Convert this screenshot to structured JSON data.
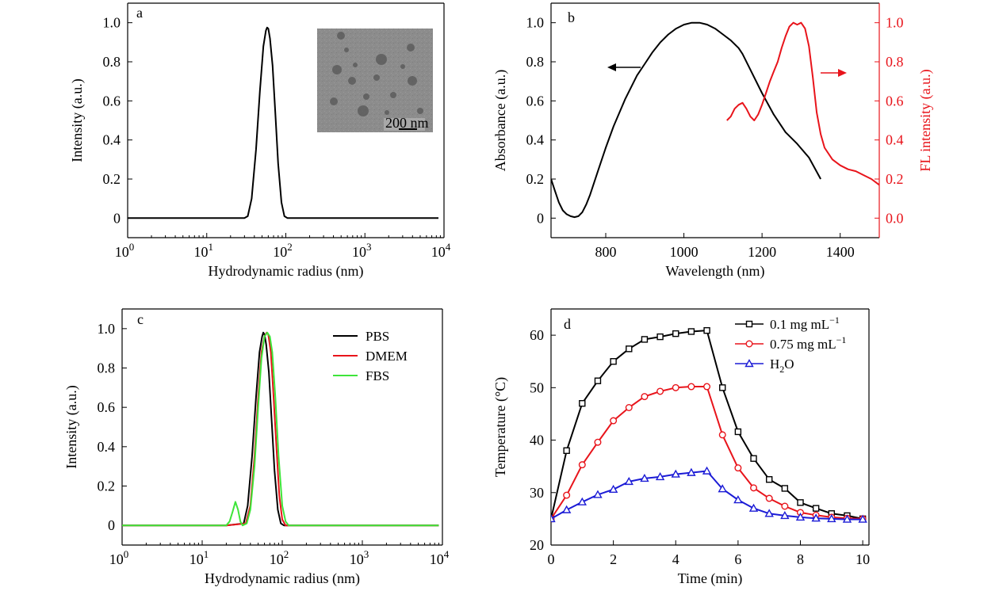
{
  "chart_data": [
    {
      "panel": "a",
      "type": "line",
      "xscale": "log",
      "xlabel": "Hydrodynamic radius (nm)",
      "ylabel": "Intensity (a.u.)",
      "xlim": [
        1,
        10000
      ],
      "ylim": [
        -0.1,
        1.1
      ],
      "xticklabels": [
        {
          "base": "10",
          "exp": "0"
        },
        {
          "base": "10",
          "exp": "1"
        },
        {
          "base": "10",
          "exp": "2"
        },
        {
          "base": "10",
          "exp": "3"
        },
        {
          "base": "10",
          "exp": "4"
        }
      ],
      "yticks": [
        0,
        0.2,
        0.4,
        0.6,
        0.8,
        1.0
      ],
      "yticklabels": [
        "0",
        "0.2",
        "0.4",
        "0.6",
        "0.8",
        "1.0"
      ],
      "series": [
        {
          "color": "#000000",
          "x": [
            1,
            10,
            20,
            30,
            33,
            37,
            42,
            47,
            52,
            56,
            58,
            60,
            63,
            68,
            74,
            80,
            88,
            96,
            105,
            200,
            1000,
            8500
          ],
          "y": [
            0,
            0,
            0,
            0,
            0.01,
            0.1,
            0.35,
            0.65,
            0.88,
            0.96,
            0.975,
            0.97,
            0.92,
            0.78,
            0.52,
            0.28,
            0.08,
            0.01,
            0,
            0,
            0,
            0
          ]
        }
      ],
      "inset": {
        "type": "TEM image",
        "scale_bar": "200 nm"
      }
    },
    {
      "panel": "b",
      "type": "line",
      "xlabel": "Wavelength (nm)",
      "ylabel": "Absorbance (a.u.)",
      "y2label": "FL intensity (a.u.)",
      "xlim": [
        660,
        1500
      ],
      "ylim": [
        -0.1,
        1.1
      ],
      "y2lim": [
        -0.1,
        1.1
      ],
      "xticks": [
        800,
        1000,
        1200,
        1400
      ],
      "yticks": [
        0,
        0.2,
        0.4,
        0.6,
        0.8,
        1.0
      ],
      "yticklabels": [
        "0",
        "0.2",
        "0.4",
        "0.6",
        "0.8",
        "1.0"
      ],
      "y2ticklabels": [
        "0.0",
        "0.2",
        "0.4",
        "0.6",
        "0.8",
        "1.0"
      ],
      "series": [
        {
          "color": "#000000",
          "axis": "left",
          "x": [
            660,
            670,
            680,
            690,
            700,
            710,
            720,
            730,
            740,
            750,
            760,
            780,
            800,
            820,
            850,
            880,
            900,
            920,
            940,
            960,
            980,
            1000,
            1020,
            1040,
            1060,
            1080,
            1100,
            1120,
            1140,
            1150,
            1170,
            1200,
            1230,
            1260,
            1290,
            1320,
            1350
          ],
          "y": [
            0.2,
            0.14,
            0.08,
            0.04,
            0.02,
            0.01,
            0.005,
            0.01,
            0.03,
            0.07,
            0.12,
            0.24,
            0.36,
            0.47,
            0.61,
            0.73,
            0.79,
            0.85,
            0.9,
            0.94,
            0.97,
            0.99,
            1.0,
            1.0,
            0.99,
            0.97,
            0.94,
            0.91,
            0.87,
            0.84,
            0.76,
            0.64,
            0.53,
            0.44,
            0.38,
            0.31,
            0.2
          ]
        },
        {
          "color": "#e8141b",
          "axis": "right",
          "x": [
            1110,
            1120,
            1130,
            1140,
            1150,
            1160,
            1170,
            1180,
            1190,
            1200,
            1210,
            1220,
            1230,
            1240,
            1250,
            1260,
            1270,
            1280,
            1290,
            1300,
            1310,
            1320,
            1330,
            1340,
            1350,
            1360,
            1380,
            1400,
            1420,
            1440,
            1460,
            1480,
            1500
          ],
          "y": [
            0.5,
            0.52,
            0.56,
            0.58,
            0.59,
            0.56,
            0.52,
            0.5,
            0.53,
            0.58,
            0.64,
            0.7,
            0.75,
            0.8,
            0.87,
            0.93,
            0.98,
            1.0,
            0.99,
            1.0,
            0.97,
            0.88,
            0.72,
            0.54,
            0.43,
            0.36,
            0.3,
            0.27,
            0.25,
            0.24,
            0.22,
            0.2,
            0.17
          ]
        }
      ],
      "annotations": [
        {
          "kind": "arrow-left",
          "color": "#000000"
        },
        {
          "kind": "arrow-right",
          "color": "#e8141b"
        }
      ]
    },
    {
      "panel": "c",
      "type": "line",
      "xscale": "log",
      "xlabel": "Hydrodynamic radius (nm)",
      "ylabel": "Intensity (a.u.)",
      "xlim": [
        1,
        10000
      ],
      "ylim": [
        -0.1,
        1.1
      ],
      "xticklabels": [
        {
          "base": "10",
          "exp": "0"
        },
        {
          "base": "10",
          "exp": "1"
        },
        {
          "base": "10",
          "exp": "2"
        },
        {
          "base": "10",
          "exp": "3"
        },
        {
          "base": "10",
          "exp": "4"
        }
      ],
      "yticks": [
        0,
        0.2,
        0.4,
        0.6,
        0.8,
        1.0
      ],
      "yticklabels": [
        "0",
        "0.2",
        "0.4",
        "0.6",
        "0.8",
        "1.0"
      ],
      "series": [
        {
          "name": "PBS",
          "color": "#000000",
          "x": [
            1,
            20,
            33,
            37,
            42,
            47,
            52,
            56,
            58,
            60,
            63,
            68,
            74,
            80,
            88,
            96,
            105,
            9000
          ],
          "y": [
            0,
            0,
            0.01,
            0.1,
            0.35,
            0.65,
            0.88,
            0.96,
            0.98,
            0.97,
            0.92,
            0.78,
            0.52,
            0.28,
            0.08,
            0.01,
            0,
            0
          ]
        },
        {
          "name": "DMEM",
          "color": "#e8141b",
          "x": [
            1,
            20,
            35,
            40,
            45,
            50,
            55,
            60,
            64,
            67,
            72,
            78,
            85,
            92,
            100,
            110,
            9000
          ],
          "y": [
            0,
            0,
            0.01,
            0.1,
            0.35,
            0.65,
            0.88,
            0.96,
            0.98,
            0.97,
            0.88,
            0.65,
            0.38,
            0.15,
            0.03,
            0,
            0
          ]
        },
        {
          "name": "FBS",
          "color": "#3ee53a",
          "x": [
            1,
            20,
            22,
            24,
            26,
            28,
            30,
            32,
            36,
            40,
            45,
            50,
            55,
            60,
            65,
            70,
            75,
            82,
            90,
            100,
            110,
            120,
            9000
          ],
          "y": [
            0,
            0,
            0.02,
            0.07,
            0.12,
            0.08,
            0.02,
            0,
            0.01,
            0.08,
            0.3,
            0.6,
            0.85,
            0.96,
            0.98,
            0.96,
            0.88,
            0.65,
            0.35,
            0.1,
            0.02,
            0,
            0
          ]
        }
      ],
      "legend": {
        "position": "top-right"
      }
    },
    {
      "panel": "d",
      "type": "line",
      "xlabel": "Time (min)",
      "ylabel": "Temperature (°C)",
      "xlim": [
        0,
        10.2
      ],
      "ylim": [
        20,
        65
      ],
      "xticks": [
        0,
        2,
        4,
        6,
        8,
        10
      ],
      "yticks": [
        20,
        30,
        40,
        50,
        60
      ],
      "series": [
        {
          "name": "0.1 mg mL",
          "sup": "−1",
          "color": "#000000",
          "marker": "square",
          "x": [
            0,
            0.5,
            1,
            1.5,
            2,
            2.5,
            3,
            3.5,
            4,
            4.5,
            5,
            5.5,
            6,
            6.5,
            7,
            7.5,
            8,
            8.5,
            9,
            9.5,
            10
          ],
          "y": [
            25,
            38,
            47,
            51.3,
            55,
            57.4,
            59.2,
            59.7,
            60.3,
            60.7,
            60.9,
            50,
            41.6,
            36.5,
            32.5,
            30.8,
            28.1,
            27,
            26,
            25.6,
            25
          ]
        },
        {
          "name": "0.75 mg mL",
          "sup": "−1",
          "color": "#e8141b",
          "marker": "circle",
          "x": [
            0,
            0.5,
            1,
            1.5,
            2,
            2.5,
            3,
            3.5,
            4,
            4.5,
            5,
            5.5,
            6,
            6.5,
            7,
            7.5,
            8,
            8.5,
            9,
            9.5,
            10
          ],
          "y": [
            25,
            29.5,
            35.3,
            39.6,
            43.7,
            46.2,
            48.3,
            49.3,
            50,
            50.2,
            50.2,
            41,
            34.7,
            30.9,
            28.9,
            27.4,
            26.2,
            25.7,
            25.3,
            25.1,
            25
          ]
        },
        {
          "name": "H",
          "sub": "2",
          "suffix": "O",
          "color": "#1b1bd6",
          "marker": "triangle",
          "x": [
            0,
            0.5,
            1,
            1.5,
            2,
            2.5,
            3,
            3.5,
            4,
            4.5,
            5,
            5.5,
            6,
            6.5,
            7,
            7.5,
            8,
            8.5,
            9,
            9.5,
            10
          ],
          "y": [
            25,
            26.7,
            28.2,
            29.6,
            30.6,
            32.1,
            32.7,
            33,
            33.5,
            33.8,
            34.1,
            30.7,
            28.6,
            27,
            26,
            25.6,
            25.3,
            25.1,
            25,
            24.9,
            24.9
          ]
        }
      ],
      "legend": {
        "position": "top-right"
      }
    }
  ]
}
